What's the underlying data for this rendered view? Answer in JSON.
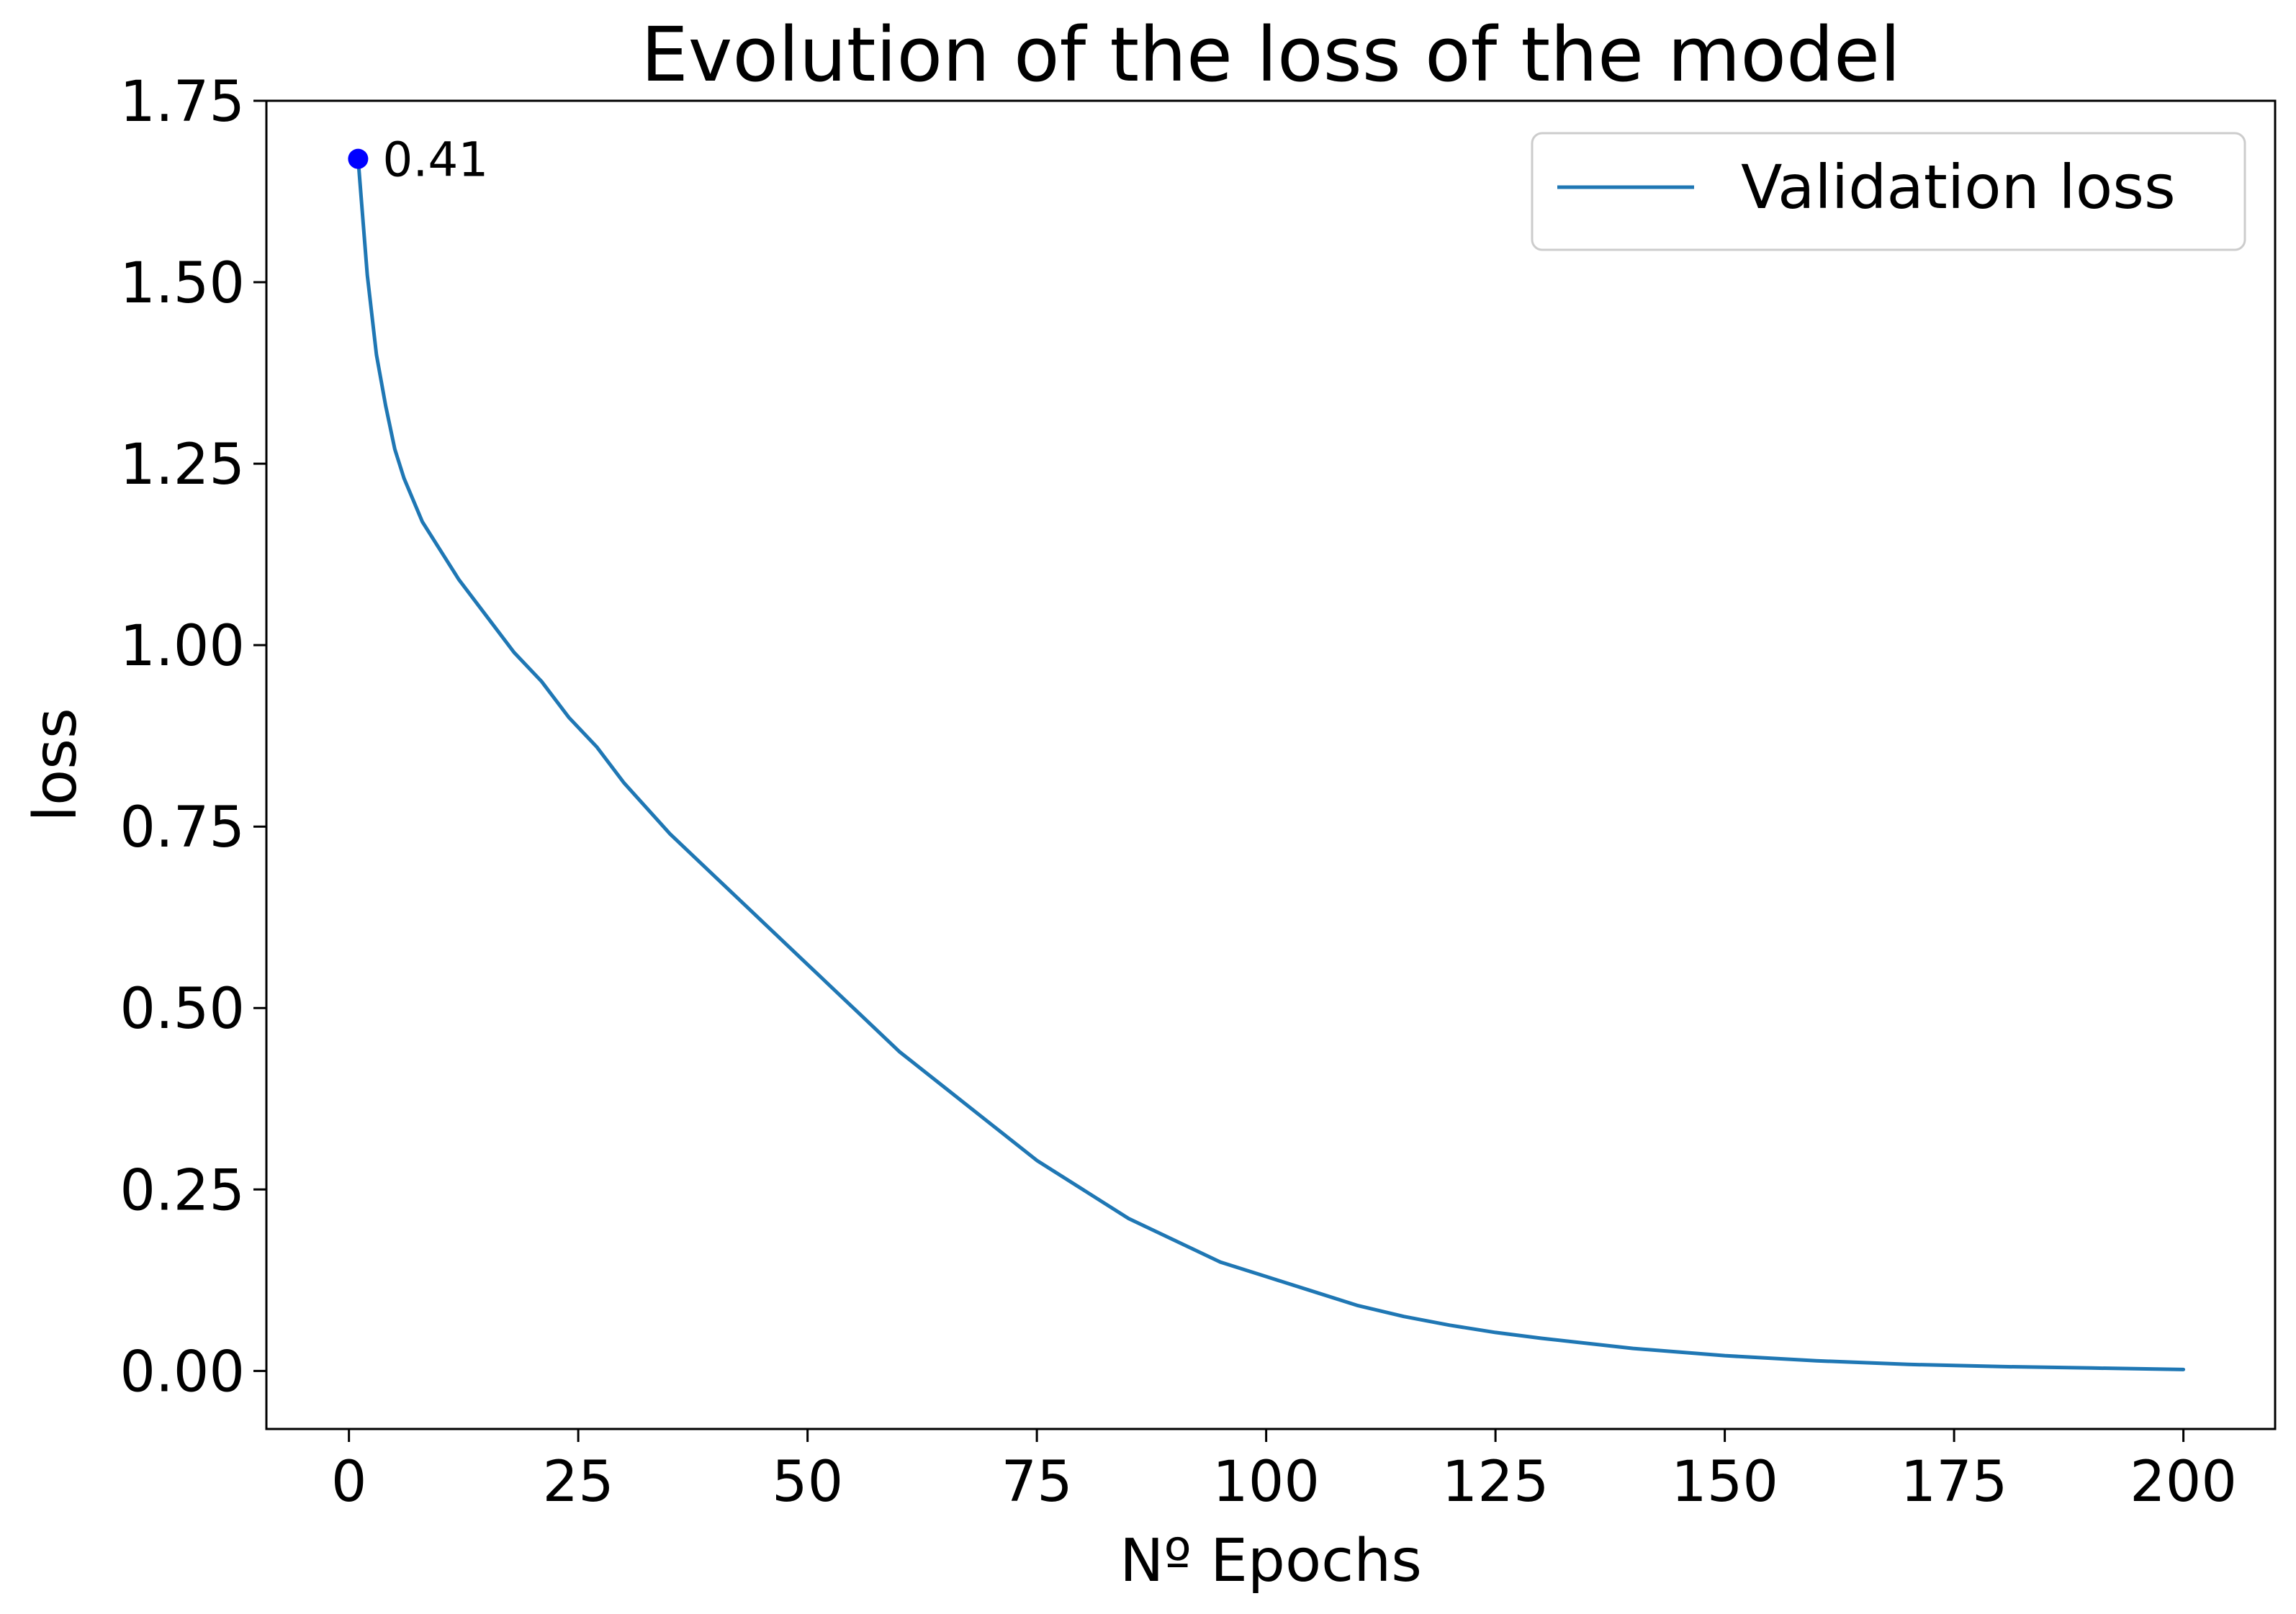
{
  "chart_data": {
    "type": "line",
    "title": "Evolution of the loss of the model",
    "xlabel": "Nº Epochs",
    "ylabel": "loss",
    "xlim": [
      -9,
      210
    ],
    "ylim": [
      -0.08,
      1.75
    ],
    "xticks": [
      0,
      25,
      50,
      75,
      100,
      125,
      150,
      175,
      200
    ],
    "yticks": [
      0.0,
      0.25,
      0.5,
      0.75,
      1.0,
      1.25,
      1.5,
      1.75
    ],
    "xtick_labels": [
      "0",
      "25",
      "50",
      "75",
      "100",
      "125",
      "150",
      "175",
      "200"
    ],
    "ytick_labels": [
      "0.00",
      "0.25",
      "0.50",
      "0.75",
      "1.00",
      "1.25",
      "1.50",
      "1.75"
    ],
    "grid": false,
    "legend_position": "top-right",
    "series": [
      {
        "name": "Validation loss",
        "color": "#1f77b4",
        "x": [
          1,
          2,
          3,
          4,
          5,
          6,
          8,
          10,
          12,
          15,
          18,
          21,
          24,
          27,
          30,
          35,
          40,
          45,
          50,
          55,
          60,
          65,
          70,
          75,
          80,
          85,
          90,
          95,
          100,
          105,
          110,
          115,
          120,
          125,
          130,
          140,
          150,
          160,
          170,
          180,
          190,
          200
        ],
        "y": [
          1.67,
          1.51,
          1.4,
          1.33,
          1.27,
          1.23,
          1.17,
          1.13,
          1.09,
          1.04,
          0.99,
          0.95,
          0.9,
          0.86,
          0.81,
          0.74,
          0.68,
          0.62,
          0.56,
          0.5,
          0.44,
          0.39,
          0.34,
          0.29,
          0.25,
          0.21,
          0.18,
          0.15,
          0.13,
          0.11,
          0.09,
          0.075,
          0.063,
          0.053,
          0.045,
          0.031,
          0.021,
          0.014,
          0.009,
          0.006,
          0.004,
          0.002
        ]
      }
    ],
    "annotations": [
      {
        "x": 1,
        "y": 1.67,
        "text": "0.41",
        "marker_color": "#0000ff"
      }
    ]
  }
}
